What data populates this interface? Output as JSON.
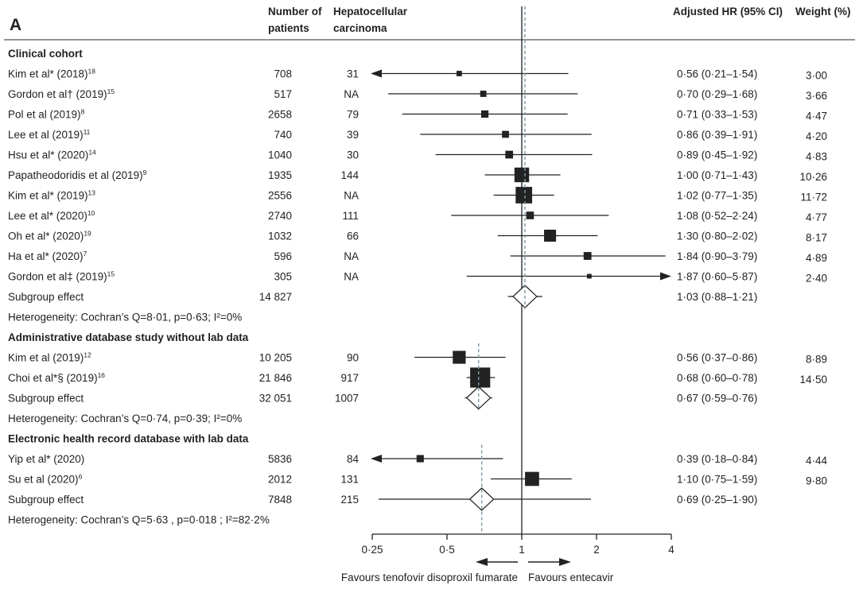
{
  "panel_label": "A",
  "columns": {
    "patients": [
      "Number of",
      "patients"
    ],
    "hcc": [
      "Hepatocellular",
      "carcinoma"
    ],
    "hr": "Adjusted HR (95% CI)",
    "weight": "Weight (%)"
  },
  "chart_data": {
    "type": "forest",
    "scale": "log",
    "xlim": [
      0.25,
      4
    ],
    "xticks": [
      0.25,
      0.5,
      1,
      2,
      4
    ],
    "xtick_labels": [
      "0·25",
      "0·5",
      "1",
      "2",
      "4"
    ],
    "reference_line": 1,
    "favours_left": "Favours tenofovir disoproxil fumarate",
    "favours_right": "Favours entecavir",
    "colors": {
      "ink": "#222222",
      "subgroup_dashed": "#7d9aa6"
    },
    "rows": [
      {
        "type": "header",
        "label": "Clinical cohort"
      },
      {
        "type": "study",
        "study": "Kim et al* (2018)",
        "ref": "18",
        "patients": "708",
        "hcc": "31",
        "hr": 0.56,
        "lo": 0.21,
        "hi": 1.54,
        "ci_text": "0·56 (0·21–1·54)",
        "weight": 3.0,
        "weight_text": "3·00"
      },
      {
        "type": "study",
        "study": "Gordon et al† (2019)",
        "ref": "15",
        "patients": "517",
        "hcc": "NA",
        "hr": 0.7,
        "lo": 0.29,
        "hi": 1.68,
        "ci_text": "0·70 (0·29–1·68)",
        "weight": 3.66,
        "weight_text": "3·66"
      },
      {
        "type": "study",
        "study": "Pol et al (2019)",
        "ref": "8",
        "patients": "2658",
        "hcc": "79",
        "hr": 0.71,
        "lo": 0.33,
        "hi": 1.53,
        "ci_text": "0·71 (0·33–1·53)",
        "weight": 4.47,
        "weight_text": "4·47"
      },
      {
        "type": "study",
        "study": "Lee et al (2019)",
        "ref": "11",
        "patients": "740",
        "hcc": "39",
        "hr": 0.86,
        "lo": 0.39,
        "hi": 1.91,
        "ci_text": "0·86 (0·39–1·91)",
        "weight": 4.2,
        "weight_text": "4·20"
      },
      {
        "type": "study",
        "study": "Hsu et al* (2020)",
        "ref": "14",
        "patients": "1040",
        "hcc": "30",
        "hr": 0.89,
        "lo": 0.45,
        "hi": 1.92,
        "ci_text": "0·89 (0·45–1·92)",
        "weight": 4.83,
        "weight_text": "4·83"
      },
      {
        "type": "study",
        "study": "Papatheodoridis et al (2019)",
        "ref": "9",
        "patients": "1935",
        "hcc": "144",
        "hr": 1.0,
        "lo": 0.71,
        "hi": 1.43,
        "ci_text": "1·00 (0·71–1·43)",
        "weight": 10.26,
        "weight_text": "10·26"
      },
      {
        "type": "study",
        "study": "Kim et al* (2019)",
        "ref": "13",
        "patients": "2556",
        "hcc": "NA",
        "hr": 1.02,
        "lo": 0.77,
        "hi": 1.35,
        "ci_text": "1·02 (0·77–1·35)",
        "weight": 11.72,
        "weight_text": "11·72"
      },
      {
        "type": "study",
        "study": "Lee et al* (2020)",
        "ref": "10",
        "patients": "2740",
        "hcc": "111",
        "hr": 1.08,
        "lo": 0.52,
        "hi": 2.24,
        "ci_text": "1·08 (0·52–2·24)",
        "weight": 4.77,
        "weight_text": "4·77"
      },
      {
        "type": "study",
        "study": "Oh et al* (2020)",
        "ref": "19",
        "patients": "1032",
        "hcc": "66",
        "hr": 1.3,
        "lo": 0.8,
        "hi": 2.02,
        "ci_text": "1·30 (0·80–2·02)",
        "weight": 8.17,
        "weight_text": "8·17"
      },
      {
        "type": "study",
        "study": "Ha et al* (2020)",
        "ref": "7",
        "patients": "596",
        "hcc": "NA",
        "hr": 1.84,
        "lo": 0.9,
        "hi": 3.79,
        "ci_text": "1·84 (0·90–3·79)",
        "weight": 4.89,
        "weight_text": "4·89"
      },
      {
        "type": "study",
        "study": "Gordon et al‡ (2019)",
        "ref": "15",
        "patients": "305",
        "hcc": "NA",
        "hr": 1.87,
        "lo": 0.6,
        "hi": 5.87,
        "ci_text": "1·87 (0·60–5·87)",
        "weight": 2.4,
        "weight_text": "2·40"
      },
      {
        "type": "subgroup",
        "label": "Subgroup effect",
        "patients": "14 827",
        "hcc": "",
        "hr": 1.03,
        "lo": 0.88,
        "hi": 1.21,
        "ci_text": "1·03 (0·88–1·21)",
        "group": "clinical"
      },
      {
        "type": "het",
        "text": "Heterogeneity: Cochran’s Q=8·01, p=0·63; I²=0%"
      },
      {
        "type": "header",
        "label": "Administrative database study without lab data"
      },
      {
        "type": "study",
        "study": "Kim et al (2019)",
        "ref": "12",
        "patients": "10 205",
        "hcc": "90",
        "hr": 0.56,
        "lo": 0.37,
        "hi": 0.86,
        "ci_text": "0·56 (0·37–0·86)",
        "weight": 8.89,
        "weight_text": "8·89"
      },
      {
        "type": "study",
        "study": "Choi et al*§ (2019)",
        "ref": "16",
        "patients": "21 846",
        "hcc": "917",
        "hr": 0.68,
        "lo": 0.6,
        "hi": 0.78,
        "ci_text": "0·68 (0·60–0·78)",
        "weight": 14.5,
        "weight_text": "14·50"
      },
      {
        "type": "subgroup",
        "label": "Subgroup effect",
        "patients": "32 051",
        "hcc": "1007",
        "hr": 0.67,
        "lo": 0.59,
        "hi": 0.76,
        "ci_text": "0·67 (0·59–0·76)",
        "group": "admin"
      },
      {
        "type": "het",
        "text": "Heterogeneity: Cochran’s Q=0·74, p=0·39; I²=0%"
      },
      {
        "type": "header",
        "label": "Electronic health record database with lab data"
      },
      {
        "type": "study",
        "study": "Yip et al* (2020)",
        "ref": "",
        "patients": "5836",
        "hcc": "84",
        "hr": 0.39,
        "lo": 0.18,
        "hi": 0.84,
        "ci_text": "0·39 (0·18–0·84)",
        "weight": 4.44,
        "weight_text": "4·44"
      },
      {
        "type": "study",
        "study": "Su et al (2020)",
        "ref": "6",
        "patients": "2012",
        "hcc": "131",
        "hr": 1.1,
        "lo": 0.75,
        "hi": 1.59,
        "ci_text": "1·10 (0·75–1·59)",
        "weight": 9.8,
        "weight_text": "9·80"
      },
      {
        "type": "subgroup",
        "label": "Subgroup effect",
        "patients": "7848",
        "hcc": "215",
        "hr": 0.69,
        "lo": 0.25,
        "hi": 1.9,
        "ci_text": "0·69 (0·25–1·90)",
        "group": "ehr"
      },
      {
        "type": "het",
        "text": "Heterogeneity: Cochran’s Q=5·63 , p=0·018 ; I²=82·2%"
      }
    ]
  }
}
